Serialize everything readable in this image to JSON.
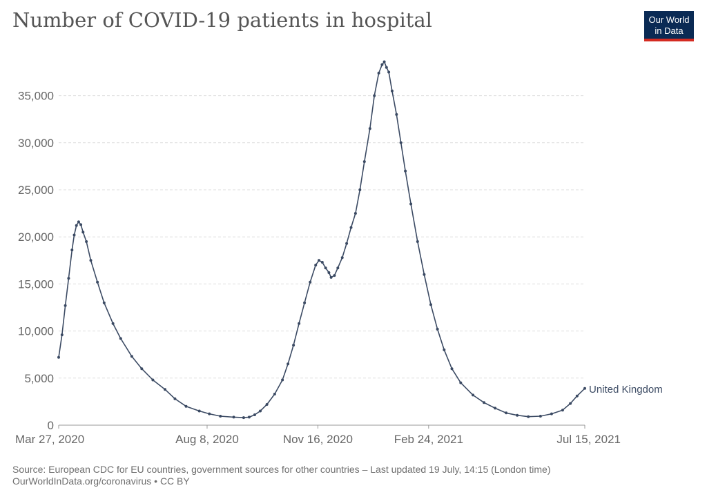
{
  "title": "Number of COVID-19 patients in hospital",
  "logo": {
    "line1": "Our World",
    "line2": "in Data"
  },
  "colors": {
    "line": "#3b4a63",
    "grid": "#dddddd",
    "axis": "#666666",
    "title": "#555555",
    "logo_bg": "#0a2a54",
    "logo_accent": "#d42b21"
  },
  "footer": {
    "source": "Source: European CDC for EU countries, government sources for other countries – Last updated 19 July, 14:15 (London time)",
    "credit": "OurWorldInData.org/coronavirus • CC BY"
  },
  "chart_data": {
    "type": "line",
    "title": "Number of COVID-19 patients in hospital",
    "xlabel": "",
    "ylabel": "",
    "x_range": [
      "2020-03-27",
      "2021-07-15"
    ],
    "ylim": [
      0,
      37000
    ],
    "y_ticks": [
      0,
      5000,
      10000,
      15000,
      20000,
      25000,
      30000,
      35000
    ],
    "y_tick_labels": [
      "0",
      "5,000",
      "10,000",
      "15,000",
      "20,000",
      "25,000",
      "30,000",
      "35,000"
    ],
    "x_ticks": [
      "2020-03-27",
      "2020-08-08",
      "2020-11-16",
      "2021-02-24",
      "2021-07-15"
    ],
    "x_tick_labels": [
      "Mar 27, 2020",
      "Aug 8, 2020",
      "Nov 16, 2020",
      "Feb 24, 2021",
      "Jul 15, 2021"
    ],
    "grid": true,
    "series": [
      {
        "name": "United Kingdom",
        "points": [
          [
            "2020-03-27",
            7200
          ],
          [
            "2020-03-30",
            9600
          ],
          [
            "2020-04-02",
            12700
          ],
          [
            "2020-04-05",
            15600
          ],
          [
            "2020-04-08",
            18600
          ],
          [
            "2020-04-10",
            20200
          ],
          [
            "2020-04-12",
            21200
          ],
          [
            "2020-04-14",
            21600
          ],
          [
            "2020-04-16",
            21300
          ],
          [
            "2020-04-18",
            20500
          ],
          [
            "2020-04-21",
            19500
          ],
          [
            "2020-04-25",
            17500
          ],
          [
            "2020-05-01",
            15200
          ],
          [
            "2020-05-07",
            13000
          ],
          [
            "2020-05-15",
            10800
          ],
          [
            "2020-05-22",
            9200
          ],
          [
            "2020-06-01",
            7300
          ],
          [
            "2020-06-10",
            6000
          ],
          [
            "2020-06-20",
            4800
          ],
          [
            "2020-07-01",
            3800
          ],
          [
            "2020-07-10",
            2800
          ],
          [
            "2020-07-20",
            2000
          ],
          [
            "2020-08-01",
            1500
          ],
          [
            "2020-08-10",
            1200
          ],
          [
            "2020-08-20",
            950
          ],
          [
            "2020-09-01",
            850
          ],
          [
            "2020-09-10",
            800
          ],
          [
            "2020-09-15",
            850
          ],
          [
            "2020-09-20",
            1100
          ],
          [
            "2020-09-25",
            1500
          ],
          [
            "2020-10-01",
            2200
          ],
          [
            "2020-10-08",
            3300
          ],
          [
            "2020-10-15",
            4800
          ],
          [
            "2020-10-20",
            6500
          ],
          [
            "2020-10-25",
            8500
          ],
          [
            "2020-10-30",
            10800
          ],
          [
            "2020-11-04",
            13000
          ],
          [
            "2020-11-09",
            15200
          ],
          [
            "2020-11-14",
            17000
          ],
          [
            "2020-11-17",
            17500
          ],
          [
            "2020-11-20",
            17300
          ],
          [
            "2020-11-23",
            16700
          ],
          [
            "2020-11-26",
            16200
          ],
          [
            "2020-11-28",
            15700
          ],
          [
            "2020-12-01",
            15900
          ],
          [
            "2020-12-04",
            16700
          ],
          [
            "2020-12-08",
            17800
          ],
          [
            "2020-12-12",
            19300
          ],
          [
            "2020-12-16",
            21000
          ],
          [
            "2020-12-20",
            22500
          ],
          [
            "2020-12-24",
            25000
          ],
          [
            "2020-12-28",
            28000
          ],
          [
            "2021-01-02",
            31500
          ],
          [
            "2021-01-06",
            35000
          ],
          [
            "2021-01-10",
            37400
          ],
          [
            "2021-01-13",
            38300
          ],
          [
            "2021-01-15",
            38600
          ],
          [
            "2021-01-17",
            38000
          ],
          [
            "2021-01-19",
            37500
          ],
          [
            "2021-01-22",
            35500
          ],
          [
            "2021-01-26",
            33000
          ],
          [
            "2021-01-30",
            30000
          ],
          [
            "2021-02-03",
            27000
          ],
          [
            "2021-02-08",
            23500
          ],
          [
            "2021-02-14",
            19500
          ],
          [
            "2021-02-20",
            16000
          ],
          [
            "2021-02-26",
            12800
          ],
          [
            "2021-03-04",
            10200
          ],
          [
            "2021-03-10",
            8000
          ],
          [
            "2021-03-17",
            6000
          ],
          [
            "2021-03-25",
            4500
          ],
          [
            "2021-04-05",
            3200
          ],
          [
            "2021-04-15",
            2400
          ],
          [
            "2021-04-25",
            1800
          ],
          [
            "2021-05-05",
            1300
          ],
          [
            "2021-05-15",
            1050
          ],
          [
            "2021-05-25",
            900
          ],
          [
            "2021-06-05",
            950
          ],
          [
            "2021-06-15",
            1200
          ],
          [
            "2021-06-25",
            1600
          ],
          [
            "2021-07-02",
            2300
          ],
          [
            "2021-07-08",
            3100
          ],
          [
            "2021-07-15",
            3900
          ]
        ]
      }
    ]
  }
}
